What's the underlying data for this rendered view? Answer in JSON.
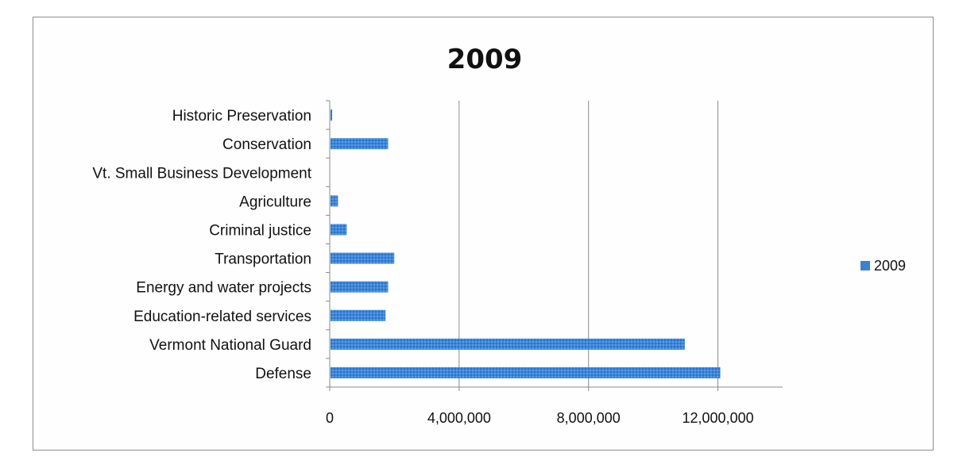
{
  "chart_data": {
    "type": "bar",
    "orientation": "horizontal",
    "title": "2009",
    "xlabel": "",
    "ylabel": "",
    "categories": [
      "Defense",
      "Vermont National Guard",
      "Education-related services",
      "Energy and water projects",
      "Transportation",
      "Criminal justice",
      "Agriculture",
      "Vt. Small Business Development",
      "Conservation",
      "Historic Preservation"
    ],
    "series": [
      {
        "name": "2009",
        "color": "#3b82d6",
        "values": [
          12050000,
          10950000,
          1700000,
          1780000,
          1970000,
          500000,
          230000,
          0,
          1780000,
          50000
        ]
      }
    ],
    "xlim": [
      0,
      14000000
    ],
    "xticks": [
      0,
      4000000,
      8000000,
      12000000
    ],
    "xtick_labels": [
      "0",
      "4,000,000",
      "8,000,000",
      "12,000,000"
    ],
    "grid": true,
    "legend": {
      "position": "right",
      "entries": [
        "2009"
      ]
    }
  }
}
